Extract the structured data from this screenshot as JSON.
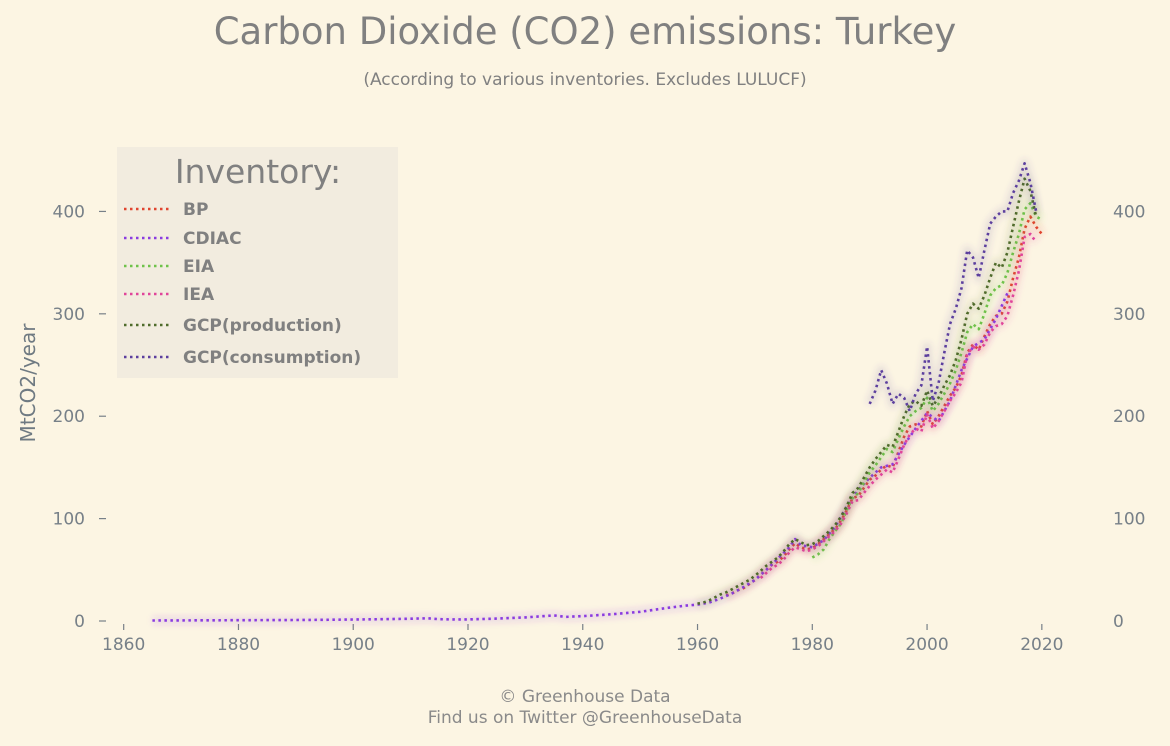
{
  "title": "Carbon Dioxide (CO2) emissions: Turkey",
  "subtitle": "(According to various inventories. Excludes LULUCF)",
  "footer": {
    "line1": "© Greenhouse Data",
    "line2": "Find us on Twitter @GreenhouseData"
  },
  "chart_data": {
    "type": "line",
    "title": "Carbon Dioxide (CO2) emissions: Turkey",
    "subtitle": "(According to various inventories. Excludes LULUCF)",
    "xlabel": "",
    "ylabel": "MtCO2/year",
    "xlim": [
      1855,
      2027
    ],
    "ylim": [
      0,
      460
    ],
    "xticks": [
      1860,
      1880,
      1900,
      1920,
      1940,
      1960,
      1980,
      2000,
      2020
    ],
    "yticks": [
      0,
      100,
      200,
      300,
      400
    ],
    "grid": false,
    "line_style": "dotted",
    "legend": {
      "title": "Inventory:",
      "position": "top-left"
    },
    "series": [
      {
        "name": "BP",
        "color": "#e0442f",
        "x": [
          1965,
          1966,
          1967,
          1968,
          1969,
          1970,
          1971,
          1972,
          1973,
          1974,
          1975,
          1976,
          1977,
          1978,
          1979,
          1980,
          1981,
          1982,
          1983,
          1984,
          1985,
          1986,
          1987,
          1988,
          1989,
          1990,
          1991,
          1992,
          1993,
          1994,
          1995,
          1996,
          1997,
          1998,
          1999,
          2000,
          2001,
          2002,
          2003,
          2004,
          2005,
          2006,
          2007,
          2008,
          2009,
          2010,
          2011,
          2012,
          2013,
          2014,
          2015,
          2016,
          2017,
          2018,
          2019,
          2020
        ],
        "y": [
          25,
          27,
          30,
          32,
          36,
          40,
          45,
          50,
          55,
          58,
          63,
          70,
          76,
          72,
          70,
          71,
          75,
          80,
          85,
          90,
          98,
          108,
          120,
          122,
          130,
          138,
          142,
          148,
          152,
          150,
          165,
          180,
          190,
          192,
          190,
          205,
          192,
          200,
          210,
          220,
          228,
          240,
          262,
          270,
          265,
          278,
          290,
          298,
          300,
          312,
          335,
          355,
          383,
          395,
          385,
          378
        ]
      },
      {
        "name": "CDIAC",
        "color": "#8a3be0",
        "x": [
          1865,
          1870,
          1875,
          1880,
          1885,
          1890,
          1895,
          1900,
          1905,
          1910,
          1913,
          1915,
          1918,
          1920,
          1925,
          1930,
          1935,
          1937,
          1940,
          1945,
          1950,
          1955,
          1958,
          1960,
          1962,
          1964,
          1966,
          1968,
          1970,
          1972,
          1974,
          1976,
          1977,
          1978,
          1980,
          1982,
          1984,
          1986,
          1988,
          1990,
          1992,
          1994,
          1996,
          1998,
          2000,
          2002,
          2004,
          2006,
          2008,
          2010,
          2012,
          2014
        ],
        "y": [
          0.5,
          0.6,
          0.7,
          0.8,
          0.9,
          1,
          1.2,
          1.5,
          1.8,
          2.2,
          2.6,
          1.8,
          1.5,
          1.6,
          2.3,
          3.5,
          5.5,
          4,
          4.8,
          6.5,
          9,
          13,
          15,
          16,
          18,
          22,
          27,
          33,
          40,
          50,
          61,
          72,
          80,
          74,
          72,
          79,
          92,
          112,
          128,
          140,
          150,
          153,
          172,
          188,
          203,
          195,
          215,
          245,
          268,
          275,
          295,
          320
        ]
      },
      {
        "name": "EIA",
        "color": "#6fc24a",
        "x": [
          1980,
          1981,
          1982,
          1983,
          1984,
          1985,
          1986,
          1987,
          1988,
          1989,
          1990,
          1991,
          1992,
          1993,
          1994,
          1995,
          1996,
          1997,
          1998,
          1999,
          2000,
          2001,
          2002,
          2003,
          2004,
          2005,
          2006,
          2007,
          2008,
          2009,
          2010,
          2011,
          2012,
          2013,
          2014,
          2015,
          2016,
          2017,
          2018,
          2019,
          2020
        ],
        "y": [
          62,
          65,
          70,
          80,
          88,
          95,
          108,
          120,
          125,
          135,
          145,
          152,
          160,
          168,
          165,
          178,
          190,
          200,
          205,
          208,
          218,
          205,
          212,
          222,
          232,
          245,
          262,
          282,
          290,
          285,
          300,
          318,
          325,
          328,
          340,
          360,
          378,
          402,
          408,
          395,
          392
        ]
      },
      {
        "name": "IEA",
        "color": "#e0449a",
        "x": [
          1971,
          1972,
          1973,
          1974,
          1975,
          1976,
          1977,
          1978,
          1979,
          1980,
          1981,
          1982,
          1983,
          1984,
          1985,
          1986,
          1987,
          1988,
          1989,
          1990,
          1991,
          1992,
          1993,
          1994,
          1995,
          1996,
          1997,
          1998,
          1999,
          2000,
          2001,
          2002,
          2003,
          2004,
          2005,
          2006,
          2007,
          2008,
          2009,
          2010,
          2011,
          2012,
          2013,
          2014,
          2015,
          2016,
          2017,
          2018,
          2019
        ],
        "y": [
          42,
          47,
          52,
          55,
          60,
          67,
          72,
          70,
          68,
          70,
          73,
          78,
          83,
          88,
          95,
          105,
          117,
          118,
          125,
          132,
          138,
          143,
          148,
          145,
          158,
          172,
          182,
          188,
          185,
          202,
          188,
          195,
          205,
          215,
          223,
          233,
          260,
          268,
          265,
          270,
          282,
          288,
          290,
          298,
          318,
          342,
          375,
          378,
          370
        ]
      },
      {
        "name": "GCP(production)",
        "color": "#4f6b2b",
        "x": [
          1960,
          1961,
          1962,
          1963,
          1964,
          1965,
          1966,
          1967,
          1968,
          1969,
          1970,
          1971,
          1972,
          1973,
          1974,
          1975,
          1976,
          1977,
          1978,
          1979,
          1980,
          1981,
          1982,
          1983,
          1984,
          1985,
          1986,
          1987,
          1988,
          1989,
          1990,
          1991,
          1992,
          1993,
          1994,
          1995,
          1996,
          1997,
          1998,
          1999,
          2000,
          2001,
          2002,
          2003,
          2004,
          2005,
          2006,
          2007,
          2008,
          2009,
          2010,
          2011,
          2012,
          2013,
          2014,
          2015,
          2016,
          2017,
          2018,
          2019
        ],
        "y": [
          17,
          18,
          20,
          23,
          26,
          28,
          31,
          34,
          37,
          40,
          44,
          49,
          54,
          58,
          62,
          68,
          75,
          80,
          77,
          74,
          75,
          78,
          83,
          88,
          94,
          102,
          112,
          125,
          130,
          140,
          150,
          158,
          165,
          172,
          170,
          185,
          200,
          212,
          215,
          210,
          225,
          210,
          218,
          230,
          240,
          255,
          275,
          300,
          310,
          305,
          318,
          335,
          350,
          345,
          360,
          385,
          410,
          432,
          420,
          395
        ]
      },
      {
        "name": "GCP(consumption)",
        "color": "#5c3f9e",
        "x": [
          1990,
          1991,
          1992,
          1993,
          1994,
          1995,
          1996,
          1997,
          1998,
          1999,
          2000,
          2001,
          2002,
          2003,
          2004,
          2005,
          2006,
          2007,
          2008,
          2009,
          2010,
          2011,
          2012,
          2013,
          2014,
          2015,
          2016,
          2017,
          2018,
          2019
        ],
        "y": [
          212,
          225,
          245,
          232,
          212,
          222,
          218,
          205,
          222,
          230,
          268,
          215,
          232,
          262,
          290,
          305,
          325,
          362,
          355,
          335,
          362,
          388,
          395,
          400,
          400,
          418,
          430,
          447,
          428,
          400
        ]
      }
    ]
  }
}
